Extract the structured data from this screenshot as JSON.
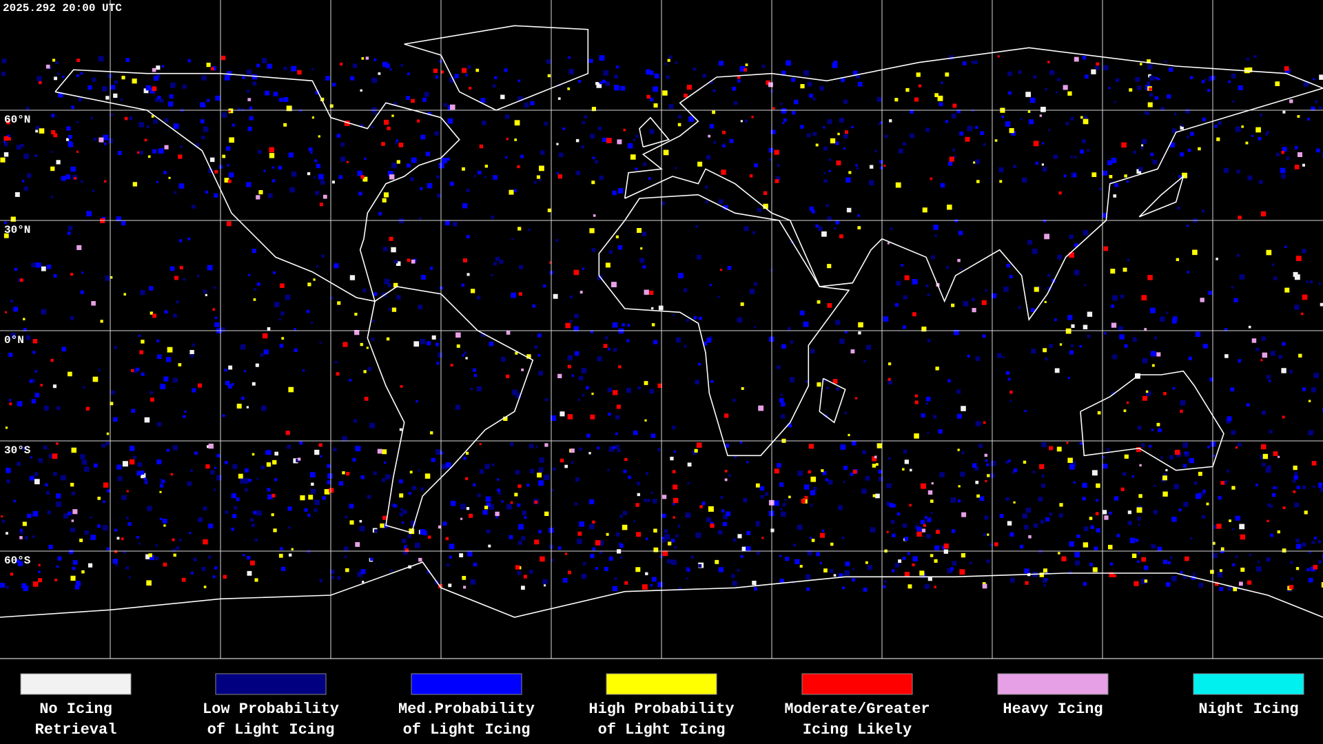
{
  "header": {
    "timestamp": "2025.292 20:00 UTC"
  },
  "map": {
    "latitude_labels": [
      "60°N",
      "30°N",
      "0°N",
      "30°S",
      "60°S"
    ]
  },
  "legend": [
    {
      "label": [
        "No Icing",
        "Retrieval"
      ],
      "color": "#f2f2f2"
    },
    {
      "label": [
        "Low Probability",
        "of Light Icing"
      ],
      "color": "#000080"
    },
    {
      "label": [
        "Med.Probability",
        "of Light Icing"
      ],
      "color": "#0000ff"
    },
    {
      "label": [
        "High Probability",
        "of Light Icing"
      ],
      "color": "#ffff00"
    },
    {
      "label": [
        "Moderate/Greater",
        "Icing Likely"
      ],
      "color": "#ff0000"
    },
    {
      "label": [
        "Heavy Icing"
      ],
      "color": "#e6a0e6"
    },
    {
      "label": [
        "Night Icing"
      ],
      "color": "#00f0f0"
    }
  ]
}
